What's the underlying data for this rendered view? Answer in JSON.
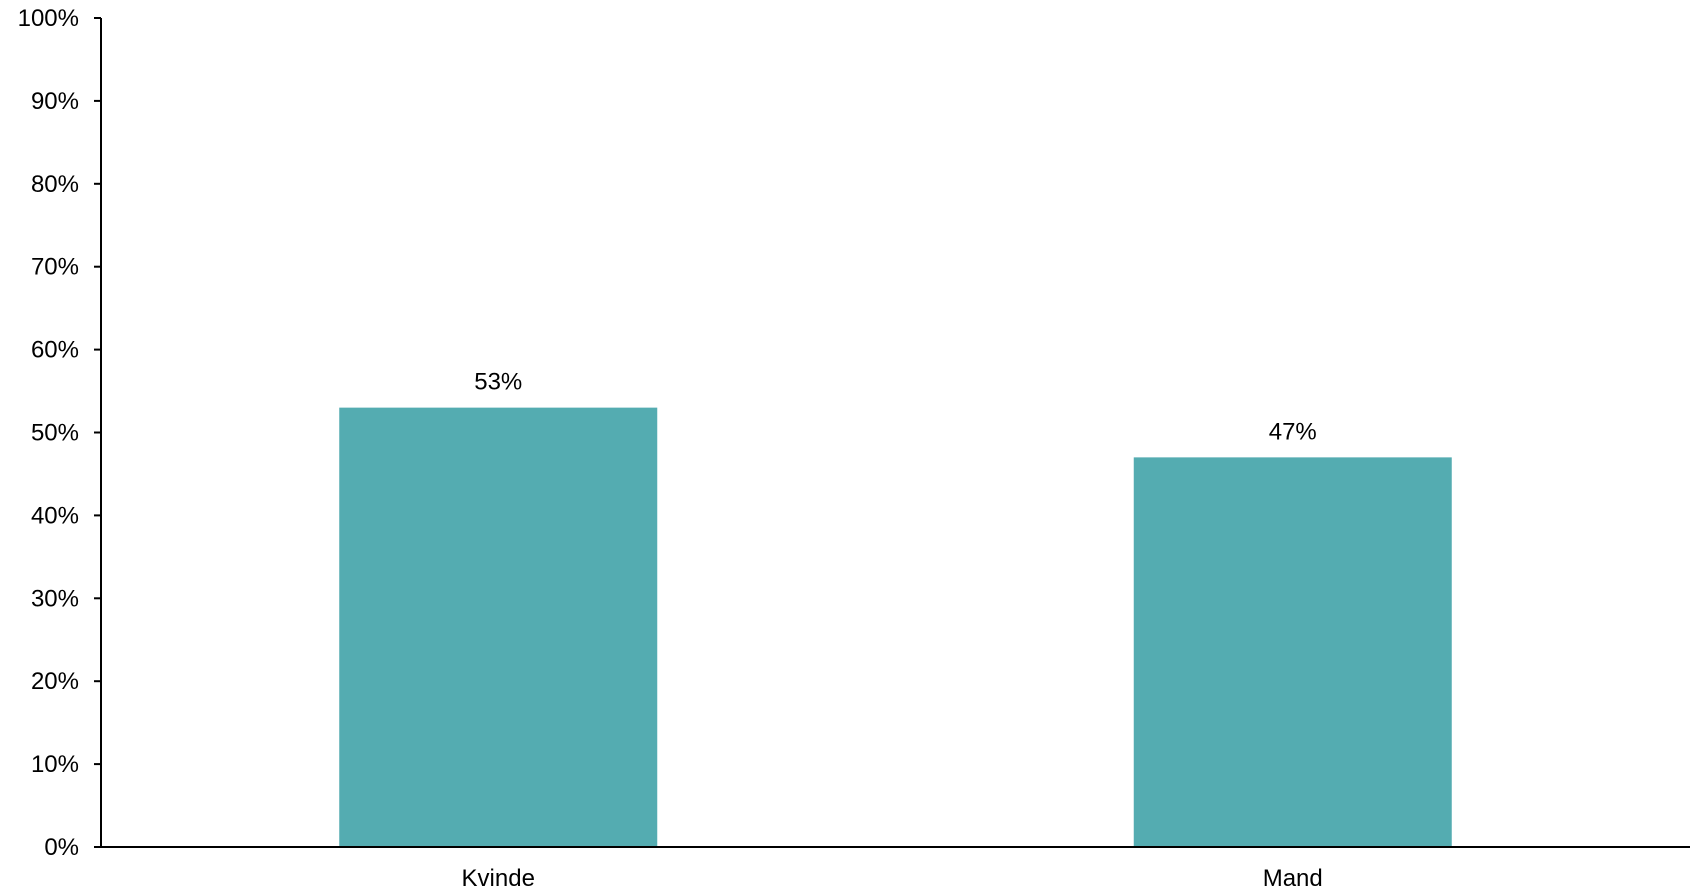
{
  "chart_data": {
    "type": "bar",
    "categories": [
      "Kvinde",
      "Mand"
    ],
    "values": [
      53,
      47
    ],
    "value_labels": [
      "53%",
      "47%"
    ],
    "title": "",
    "xlabel": "",
    "ylabel": "",
    "ylim": [
      0,
      100
    ],
    "y_tick_step": 10,
    "y_tick_labels": [
      "0%",
      "10%",
      "20%",
      "30%",
      "40%",
      "50%",
      "60%",
      "70%",
      "80%",
      "90%",
      "100%"
    ],
    "grid": false,
    "legend": "none",
    "bar_color": "#54acb1",
    "axis_color": "#000000"
  }
}
